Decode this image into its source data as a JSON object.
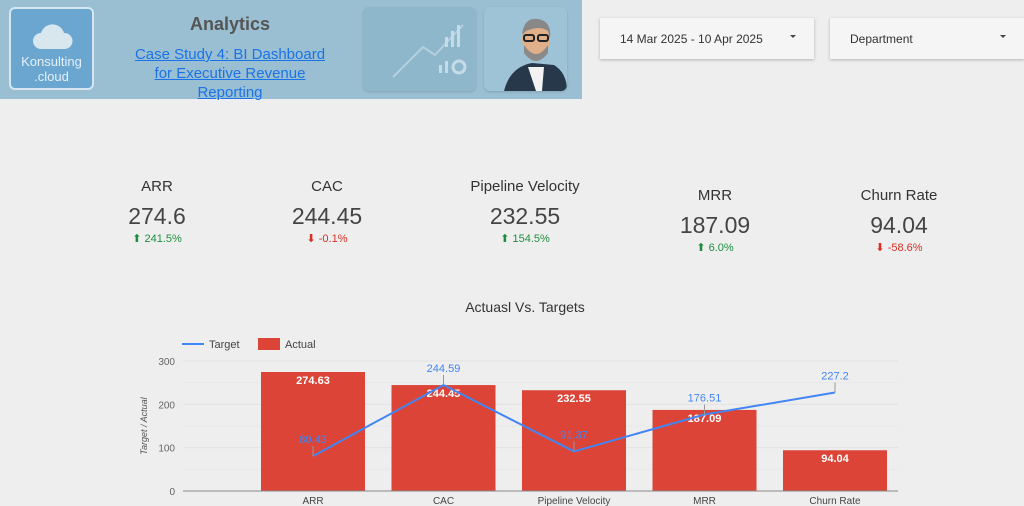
{
  "header": {
    "logo_text_1": "Konsulting",
    "logo_text_2": ".cloud",
    "title": "Analytics",
    "link_text": "Case Study 4: BI Dashboard for Executive Revenue Reporting"
  },
  "filters": {
    "date_range": "14 Mar 2025 - 10 Apr 2025",
    "department": "Department"
  },
  "kpis": [
    {
      "label": "ARR",
      "value": "274.6",
      "delta": "241.5%",
      "direction": "up"
    },
    {
      "label": "CAC",
      "value": "244.45",
      "delta": "-0.1%",
      "direction": "down"
    },
    {
      "label": "Pipeline Velocity",
      "value": "232.55",
      "delta": "154.5%",
      "direction": "up"
    },
    {
      "label": "MRR",
      "value": "187.09",
      "delta": "6.0%",
      "direction": "up"
    },
    {
      "label": "Churn Rate",
      "value": "94.04",
      "delta": "-58.6%",
      "direction": "down"
    }
  ],
  "colors": {
    "up": "#1e8e3e",
    "down": "#d93025",
    "bar": "#db4437",
    "line": "#4285f4"
  },
  "chart_data": {
    "type": "bar",
    "title": "Actuasl Vs. Targets",
    "ylabel": "Target / Actual",
    "ylim": [
      0,
      300
    ],
    "yticks": [
      "0",
      "100",
      "200",
      "300"
    ],
    "legend": "top-left",
    "categories": [
      "ARR",
      "CAC",
      "Pipeline Velocity",
      "MRR",
      "Churn Rate"
    ],
    "series": [
      {
        "name": "Target",
        "type": "line",
        "values": [
          80.43,
          244.59,
          91.37,
          176.51,
          227.2
        ],
        "labels": [
          "80.43",
          "244.59",
          "91.37",
          "176.51",
          "227.2"
        ]
      },
      {
        "name": "Actual",
        "type": "bar",
        "values": [
          274.63,
          244.45,
          232.55,
          187.09,
          94.04
        ],
        "labels": [
          "274.63",
          "244.45",
          "232.55",
          "187.09",
          "94.04"
        ]
      }
    ]
  }
}
